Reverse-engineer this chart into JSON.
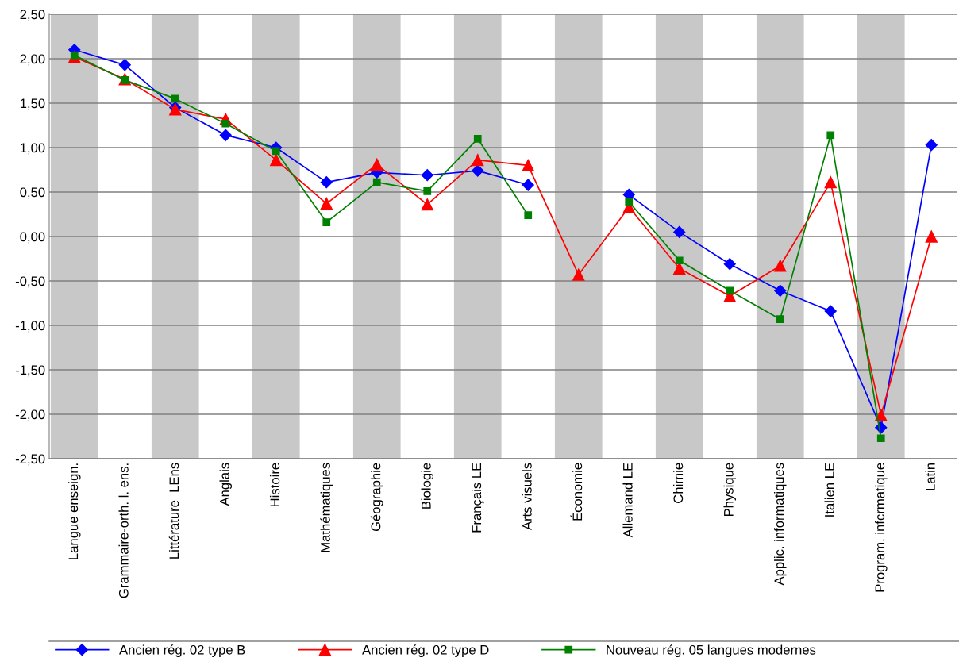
{
  "chart_data": {
    "type": "line",
    "categories": [
      "Langue enseign.",
      "Grammaire-orth. l. ens.",
      "Littérature  LEns",
      "Anglais",
      "Histoire",
      "Mathématiques",
      "Géographie",
      "Biologie",
      "Français LE",
      "Arts visuels",
      "Économie",
      "Allemand LE",
      "Chimie",
      "Physique",
      "Applic. informatiques",
      "Italien LE",
      "Program. infcrmatique",
      "Latin"
    ],
    "series": [
      {
        "name": "Ancien rég. 02 type B",
        "color": "#0000ff",
        "marker": "diamond",
        "values": [
          2.1,
          1.93,
          1.45,
          1.14,
          1.0,
          0.61,
          0.72,
          0.69,
          0.74,
          0.58,
          null,
          0.47,
          0.05,
          -0.31,
          -0.61,
          -0.84,
          -2.15,
          1.03
        ]
      },
      {
        "name": "Ancien rég. 02 type D",
        "color": "#ff0000",
        "marker": "triangle",
        "values": [
          2.02,
          1.77,
          1.43,
          1.32,
          0.86,
          0.37,
          0.81,
          0.36,
          0.86,
          0.8,
          -0.43,
          0.33,
          -0.36,
          -0.67,
          -0.33,
          0.61,
          -2.01,
          0.0
        ]
      },
      {
        "name": "Nouveau rég. 05 langues modernes",
        "color": "#008000",
        "marker": "square",
        "values": [
          2.04,
          1.76,
          1.55,
          1.27,
          0.96,
          0.16,
          0.61,
          0.51,
          1.1,
          0.24,
          null,
          0.39,
          -0.27,
          -0.61,
          -0.93,
          1.14,
          -2.27,
          null
        ]
      }
    ],
    "ylim": [
      -2.5,
      2.5
    ],
    "yticks": [
      {
        "value": -2.5,
        "label": "-2,50"
      },
      {
        "value": -2.0,
        "label": "-2,00"
      },
      {
        "value": -1.5,
        "label": "-1,50"
      },
      {
        "value": -1.0,
        "label": "-1,00"
      },
      {
        "value": -0.5,
        "label": "-0,50"
      },
      {
        "value": 0.0,
        "label": "0,00"
      },
      {
        "value": 0.5,
        "label": "0,50"
      },
      {
        "value": 1.0,
        "label": "1,00"
      },
      {
        "value": 1.5,
        "label": "1,50"
      },
      {
        "value": 2.0,
        "label": "2,00"
      },
      {
        "value": 2.5,
        "label": "2,50"
      }
    ],
    "grid": "y",
    "legend": "bottom",
    "line_style": "solid"
  }
}
